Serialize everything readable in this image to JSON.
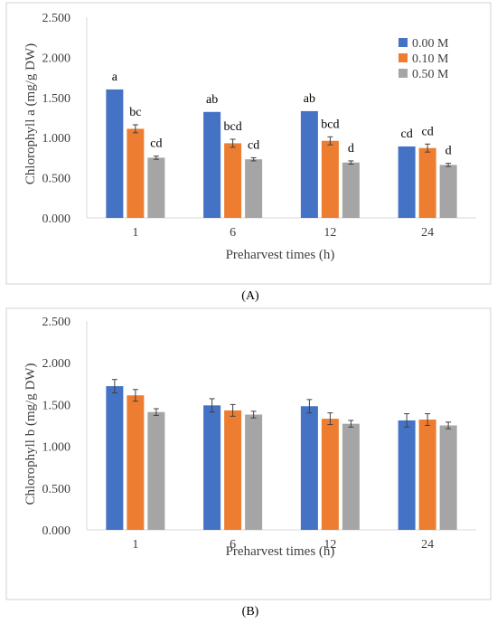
{
  "figure": {
    "panel_labels": [
      "(A)",
      "(B)"
    ]
  },
  "legend": {
    "entries": [
      {
        "label": "0.00 M",
        "color": "#4472C4"
      },
      {
        "label": "0.10 M",
        "color": "#ED7D31"
      },
      {
        "label": "0.50 M",
        "color": "#A5A5A5"
      }
    ]
  },
  "chart_data": [
    {
      "type": "bar",
      "panel": "A",
      "title": "",
      "xlabel": "Preharvest times (h)",
      "ylabel": "Chlorophyll a (mg/g DW)",
      "categories": [
        "1",
        "6",
        "12",
        "24"
      ],
      "ylim": [
        0,
        2.5
      ],
      "yticks": [
        "0.000",
        "0.500",
        "1.000",
        "1.500",
        "2.000",
        "2.500"
      ],
      "grid": false,
      "legend_position": "top-right",
      "series": [
        {
          "name": "0.00 M",
          "color": "#4472C4",
          "values": [
            1.6,
            1.32,
            1.33,
            0.89
          ],
          "errors": [
            0,
            0,
            0,
            0
          ],
          "letters": [
            "a",
            "ab",
            "ab",
            "cd"
          ]
        },
        {
          "name": "0.10 M",
          "color": "#ED7D31",
          "values": [
            1.11,
            0.93,
            0.96,
            0.87
          ],
          "errors": [
            0.05,
            0.05,
            0.05,
            0.05
          ],
          "letters": [
            "bc",
            "bcd",
            "bcd",
            "cd"
          ]
        },
        {
          "name": "0.50 M",
          "color": "#A5A5A5",
          "values": [
            0.75,
            0.73,
            0.69,
            0.66
          ],
          "errors": [
            0.02,
            0.02,
            0.02,
            0.02
          ],
          "letters": [
            "cd",
            "cd",
            "d",
            "d"
          ]
        }
      ]
    },
    {
      "type": "bar",
      "panel": "B",
      "title": "",
      "xlabel": "Preharvest times (h)",
      "ylabel": "Chlorophyll b (mg/g DW)",
      "categories": [
        "1",
        "6",
        "12",
        "24"
      ],
      "ylim": [
        0,
        2.5
      ],
      "yticks": [
        "0.000",
        "0.500",
        "1.000",
        "1.500",
        "2.000",
        "2.500"
      ],
      "grid": false,
      "series": [
        {
          "name": "0.00 M",
          "color": "#4472C4",
          "values": [
            1.72,
            1.49,
            1.48,
            1.31
          ],
          "errors": [
            0.08,
            0.08,
            0.08,
            0.08
          ]
        },
        {
          "name": "0.10 M",
          "color": "#ED7D31",
          "values": [
            1.61,
            1.43,
            1.33,
            1.32
          ],
          "errors": [
            0.07,
            0.07,
            0.07,
            0.07
          ]
        },
        {
          "name": "0.50 M",
          "color": "#A5A5A5",
          "values": [
            1.41,
            1.38,
            1.27,
            1.25
          ],
          "errors": [
            0.04,
            0.04,
            0.04,
            0.04
          ]
        }
      ]
    }
  ]
}
